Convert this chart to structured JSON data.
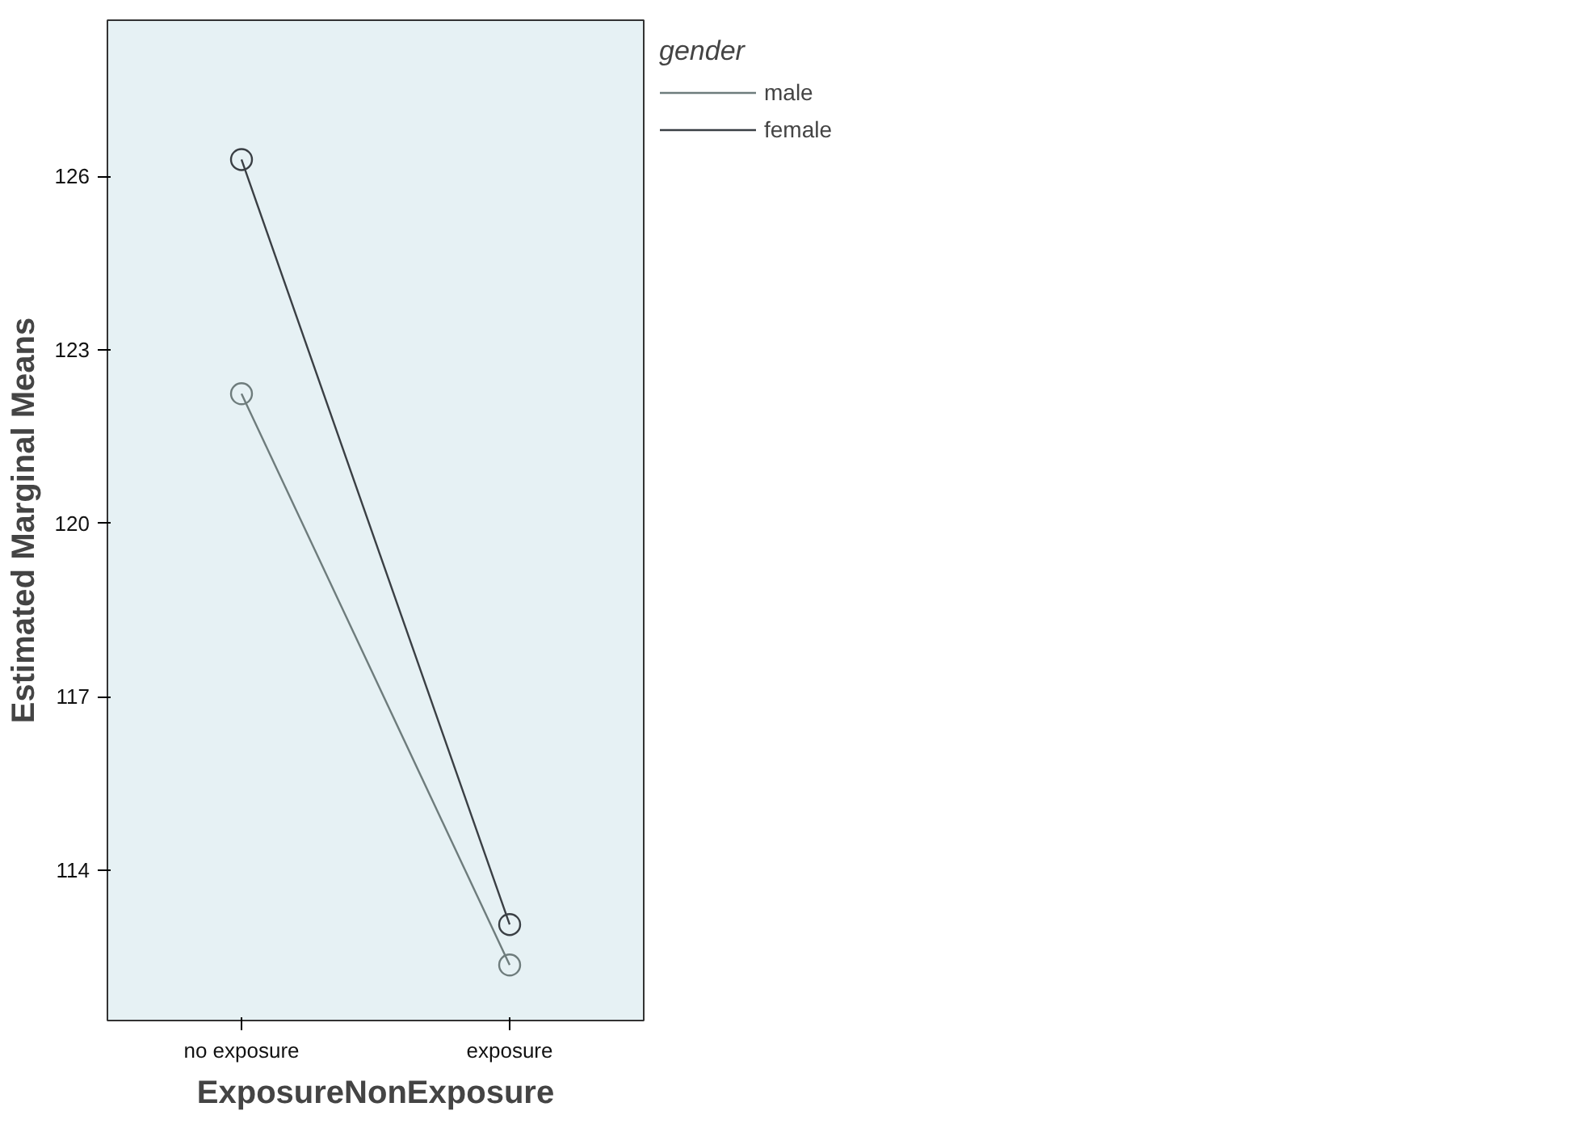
{
  "chart_data": {
    "type": "line",
    "xlabel": "ExposureNonExposure",
    "ylabel": "Estimated Marginal Means",
    "legend_title": "gender",
    "categories": [
      "no exposure",
      "exposure"
    ],
    "series": [
      {
        "name": "male",
        "color": "#6e7c7c",
        "values": [
          122.24,
          112.36
        ]
      },
      {
        "name": "female",
        "color": "#3a3f44",
        "values": [
          126.29,
          113.06
        ]
      }
    ],
    "ylim": [
      111.4,
      128.7
    ],
    "yticks": [
      114,
      117,
      120,
      123,
      126
    ],
    "grid": false,
    "legend": "top right",
    "marker": "circle",
    "line_style": "solid"
  }
}
